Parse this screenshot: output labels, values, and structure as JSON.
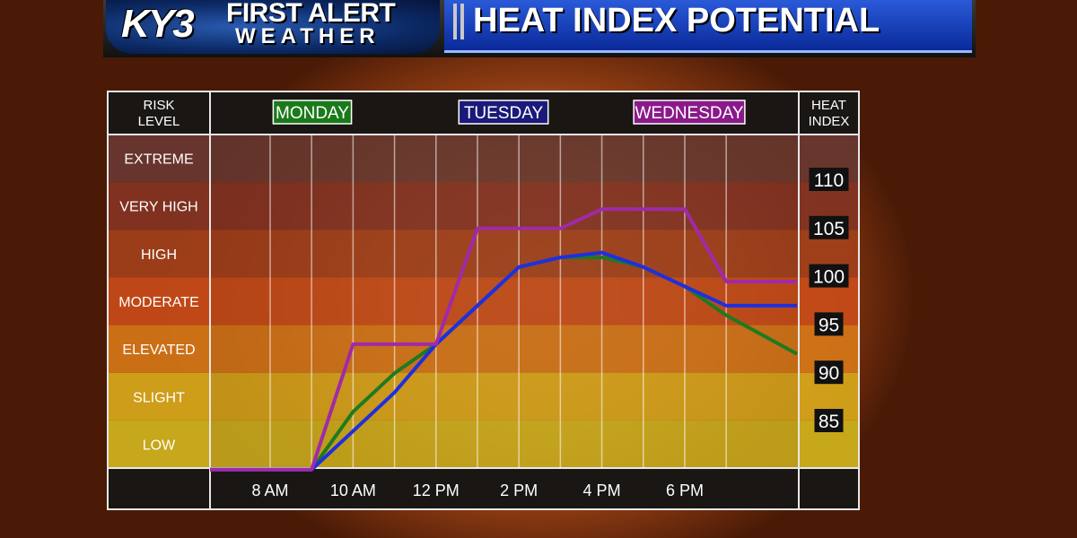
{
  "header": {
    "logo_ky3": "KY3",
    "logo_line1": "FIRST ALERT",
    "logo_line2": "WEATHER",
    "title": "HEAT INDEX POTENTIAL"
  },
  "chart_data": {
    "type": "line",
    "risk_header": "RISK\nLEVEL",
    "index_header": "HEAT\nINDEX",
    "risk_levels": [
      {
        "label": "EXTREME",
        "color": "#6e3a32"
      },
      {
        "label": "VERY HIGH",
        "color": "#8a3524"
      },
      {
        "label": "HIGH",
        "color": "#a8421c"
      },
      {
        "label": "MODERATE",
        "color": "#cf4e1a"
      },
      {
        "label": "ELEVATED",
        "color": "#dd7a18"
      },
      {
        "label": "SLIGHT",
        "color": "#e0ad1c"
      },
      {
        "label": "LOW",
        "color": "#d8b81e"
      }
    ],
    "x_ticks": [
      "8 AM",
      "10 AM",
      "12 PM",
      "2 PM",
      "4 PM",
      "6 PM"
    ],
    "x_tick_hours": [
      8,
      10,
      12,
      14,
      16,
      18
    ],
    "y_ticks": [
      85,
      90,
      95,
      100,
      105,
      110
    ],
    "series": [
      {
        "name": "MONDAY",
        "color": "#1f7a1f",
        "x": [
          7,
          9,
          10,
          11,
          12,
          13,
          14,
          15,
          16,
          17,
          18,
          19,
          20
        ],
        "y": [
          80,
          80,
          86,
          90,
          93,
          97,
          101,
          102,
          102,
          101,
          99,
          96,
          92
        ]
      },
      {
        "name": "TUESDAY",
        "color": "#1f2fe0",
        "x": [
          7,
          9,
          10,
          11,
          12,
          13,
          14,
          15,
          16,
          17,
          18,
          19,
          20
        ],
        "y": [
          80,
          80,
          84,
          88,
          93,
          97,
          101,
          102,
          102.5,
          101,
          99,
          97,
          97
        ]
      },
      {
        "name": "WEDNESDAY",
        "color": "#a02aa8",
        "x": [
          7,
          9,
          10,
          12,
          13,
          15,
          16,
          18,
          19,
          20
        ],
        "y": [
          80,
          80,
          93,
          93,
          105,
          105,
          107,
          107,
          99.5,
          99.5
        ]
      }
    ],
    "legend_colors": {
      "MONDAY": "#1a7a1a",
      "TUESDAY": "#1a1a7a",
      "WEDNESDAY": "#8a1a8a"
    }
  }
}
